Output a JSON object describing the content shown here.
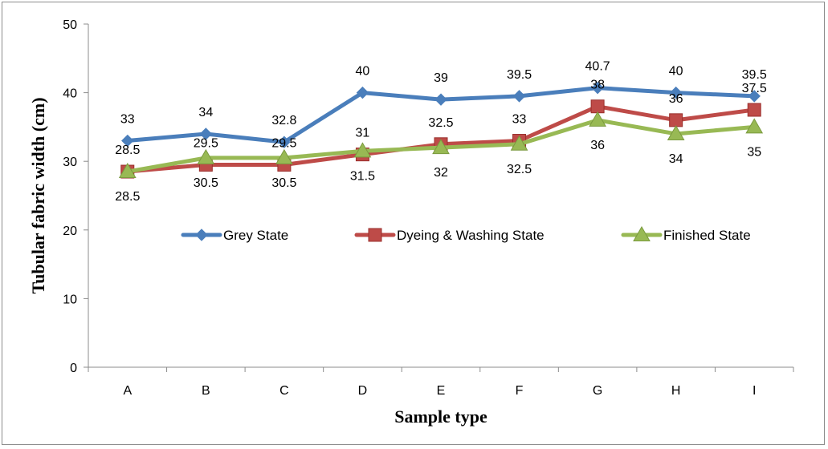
{
  "chart_data": {
    "type": "line",
    "categories": [
      "A",
      "B",
      "C",
      "D",
      "E",
      "F",
      "G",
      "H",
      "I"
    ],
    "series": [
      {
        "name": "Grey State",
        "color": "#4a7ebb",
        "marker": "diamond",
        "values": [
          33,
          34,
          32.8,
          40,
          39,
          39.5,
          40.7,
          40,
          39.5
        ],
        "labels": [
          "33",
          "34",
          "32.8",
          "40",
          "39",
          "39.5",
          "40.7",
          "40",
          "39.5"
        ]
      },
      {
        "name": "Dyeing & Washing State",
        "color": "#be4b48",
        "marker": "square",
        "values": [
          28.5,
          29.5,
          29.5,
          31,
          32.5,
          33,
          38,
          36,
          37.5
        ],
        "labels": [
          "28.5",
          "29.5",
          "29.5",
          "31",
          "32.5",
          "33",
          "38",
          "36",
          "37.5"
        ]
      },
      {
        "name": "Finished State",
        "color": "#98b954",
        "marker": "triangle",
        "values": [
          28.5,
          30.5,
          30.5,
          31.5,
          32,
          32.5,
          36,
          34,
          35
        ],
        "labels": [
          "28.5",
          "30.5",
          "30.5",
          "31.5",
          "32",
          "32.5",
          "36",
          "34",
          "35"
        ]
      }
    ],
    "xlabel": "Sample type",
    "ylabel": "Tubular fabric width (cm)",
    "ylim": [
      0,
      50
    ],
    "yticks": [
      "0",
      "10",
      "20",
      "30",
      "40",
      "50"
    ],
    "grid": false,
    "legend_position": "inside-center"
  }
}
